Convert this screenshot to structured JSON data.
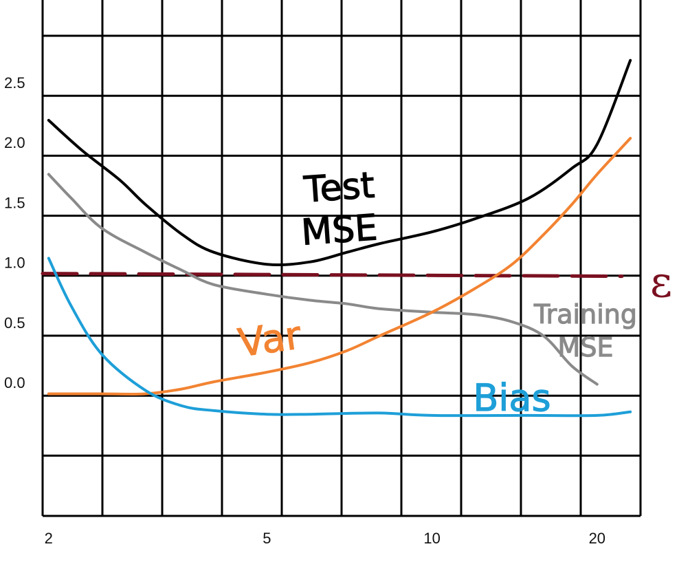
{
  "chart_data": {
    "type": "line",
    "title": "",
    "xlabel": "",
    "ylabel": "",
    "x_scale": "log",
    "x_ticks": [
      "2",
      "5",
      "10",
      "20"
    ],
    "x_tick_values": [
      2,
      5,
      10,
      20
    ],
    "y_ticks": [
      "0.0",
      "0.5",
      "1.0",
      "1.5",
      "2.0",
      "2.5"
    ],
    "y_tick_values": [
      0,
      0.5,
      1,
      1.5,
      2,
      2.5
    ],
    "xlim": [
      1.95,
      24
    ],
    "ylim": [
      -0.5,
      2.5
    ],
    "grid": true,
    "series": [
      {
        "name": "Test MSE",
        "label_lines": [
          "Test",
          "MSE"
        ],
        "color": "#000000",
        "x": [
          2,
          2.3,
          2.7,
          3,
          3.5,
          4,
          5,
          6,
          7,
          8,
          10,
          12,
          15,
          18,
          20,
          23
        ],
        "y": [
          2.3,
          2.05,
          1.8,
          1.6,
          1.35,
          1.2,
          1.1,
          1.12,
          1.2,
          1.27,
          1.37,
          1.48,
          1.65,
          1.9,
          2.1,
          2.8
        ]
      },
      {
        "name": "Training MSE",
        "label_lines": [
          "Training",
          "MSE"
        ],
        "color": "#8a8a8a",
        "x": [
          2,
          2.2,
          2.5,
          3,
          3.5,
          4,
          5,
          6,
          7,
          8,
          10,
          12,
          14,
          16,
          18,
          20
        ],
        "y": [
          1.85,
          1.65,
          1.4,
          1.2,
          1.05,
          0.93,
          0.85,
          0.8,
          0.77,
          0.73,
          0.7,
          0.68,
          0.62,
          0.5,
          0.25,
          0.1
        ]
      },
      {
        "name": "Var",
        "label_lines": [
          "Var"
        ],
        "color": "#f28332",
        "x": [
          2,
          2.5,
          3,
          3.5,
          4,
          5,
          6,
          7,
          8,
          10,
          12,
          14,
          16,
          18,
          20,
          23
        ],
        "y": [
          0.02,
          0.02,
          0.02,
          0.06,
          0.12,
          0.2,
          0.28,
          0.38,
          0.5,
          0.7,
          0.9,
          1.1,
          1.35,
          1.6,
          1.85,
          2.15
        ]
      },
      {
        "name": "Bias",
        "label_lines": [
          "Bias"
        ],
        "color": "#1e9fd8",
        "x": [
          2,
          2.2,
          2.5,
          3,
          3.5,
          4,
          5,
          6,
          8,
          10,
          15,
          20,
          23
        ],
        "y": [
          1.15,
          0.75,
          0.35,
          0.05,
          -0.08,
          -0.12,
          -0.15,
          -0.15,
          -0.14,
          -0.16,
          -0.16,
          -0.16,
          -0.13
        ]
      }
    ],
    "reference_lines": [
      {
        "name": "ε",
        "label": "ε",
        "y": 1.0,
        "style": "dashed",
        "color": "#7a1020"
      }
    ]
  }
}
